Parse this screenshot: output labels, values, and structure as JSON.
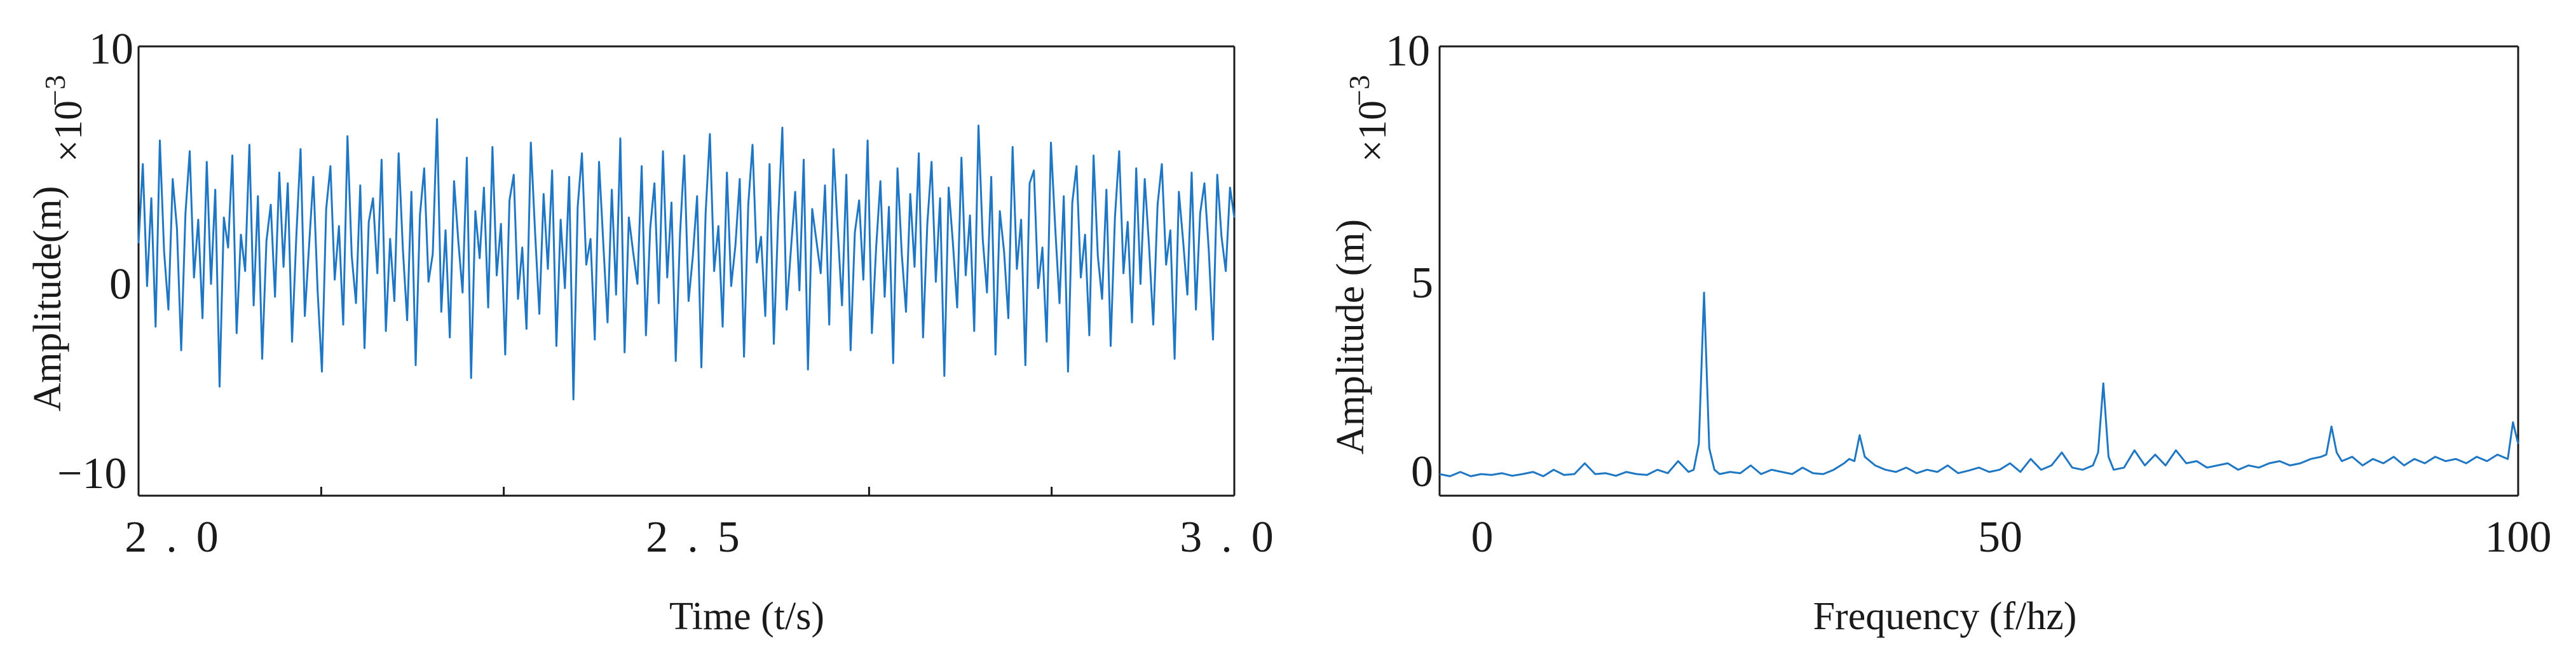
{
  "chart_data": [
    {
      "type": "line",
      "title": "",
      "xlabel": "Time (t/s)",
      "ylabel": "Amplitude(m)",
      "y_multiplier": "×10",
      "y_multiplier_exponent": "−3",
      "xlim": [
        2.0,
        3.0
      ],
      "ylim": [
        -11,
        10
      ],
      "x_ticks": [
        2.0,
        2.5,
        3.0
      ],
      "x_tick_labels": [
        "2.0",
        "2.5",
        "3.0"
      ],
      "y_ticks": [
        10,
        0,
        -10
      ],
      "y_tick_labels": [
        "10",
        "0",
        "−10"
      ],
      "x_minor_ticks": [
        2.1667,
        2.3333,
        2.6667,
        2.8333
      ],
      "grid": false,
      "line_color": "#1f77c4",
      "series": [
        {
          "x_start": 2.0,
          "x_end": 3.0,
          "values": [
            0.8,
            4.5,
            -1.2,
            2.9,
            -3.1,
            5.6,
            0.4,
            -2.3,
            3.8,
            1.5,
            -4.2,
            2.2,
            5.1,
            -0.8,
            1.9,
            -2.7,
            4.6,
            -1.1,
            3.3,
            -5.9,
            2.0,
            0.6,
            4.9,
            -3.4,
            1.2,
            -0.5,
            5.4,
            -2.1,
            3.0,
            -4.6,
            0.9,
            2.6,
            -1.7,
            4.1,
            -0.3,
            3.6,
            -3.8,
            1.1,
            5.2,
            -2.6,
            0.7,
            3.9,
            -1.4,
            -5.2,
            2.4,
            4.4,
            -0.9,
            1.6,
            -3.0,
            5.8,
            0.2,
            -2.0,
            3.5,
            -4.1,
            1.8,
            2.9,
            -0.6,
            4.7,
            -3.3,
            1.0,
            -1.9,
            5.0,
            0.5,
            -2.8,
            3.2,
            -4.9,
            2.1,
            4.3,
            -1.0,
            0.3,
            6.6,
            -2.4,
            1.4,
            -3.6,
            3.7,
            0.9,
            -1.5,
            4.8,
            -5.5,
            2.3,
            0.1,
            3.4,
            -2.2,
            5.3,
            -0.7,
            1.7,
            -4.4,
            2.8,
            4.0,
            -1.8,
            0.6,
            -3.2,
            5.5,
            1.3,
            -2.5,
            3.1,
            -0.4,
            4.2,
            -4.0,
            1.9,
            -1.3,
            3.9,
            -6.5,
            2.5,
            5.0,
            -0.2,
            1.0,
            -3.7,
            4.6,
            0.8,
            -2.9,
            3.3,
            -1.6,
            5.7,
            -4.3,
            2.0,
            0.4,
            -1.1,
            4.4,
            -3.5,
            1.5,
            3.6,
            -2.0,
            5.1,
            -0.8,
            2.7,
            -4.7,
            1.2,
            4.9,
            -1.9,
            0.2,
            3.0,
            -5.0,
            2.2,
            5.9,
            -0.5,
            1.6,
            -3.1,
            4.1,
            -1.2,
            0.7,
            3.8,
            -4.5,
            2.6,
            5.4,
            -0.1,
            1.1,
            -2.6,
            4.5,
            -3.9,
            1.8,
            6.2,
            -2.3,
            0.5,
            3.2,
            -1.4,
            4.7,
            -5.1,
            2.4,
            0.9,
            -0.6,
            3.5,
            -3.0,
            5.2,
            1.4,
            -2.1,
            4.0,
            -4.2,
            1.3,
            2.8,
            -0.9,
            5.6,
            -3.4,
            0.6,
            3.7,
            -1.7,
            2.5,
            -4.8,
            4.3,
            0.3,
            -2.4,
            3.1,
            -0.3,
            5.0,
            -3.6,
            1.7,
            4.6,
            -1.0,
            2.9,
            -5.4,
            3.4,
            0.8,
            -2.2,
            4.8,
            -0.7,
            2.1,
            -3.3,
            6.3,
            1.0,
            -1.5,
            3.9,
            -4.4,
            2.3,
            0.4,
            -2.7,
            5.3,
            -0.4,
            1.9,
            -4.9,
            3.6,
            4.2,
            -1.3,
            0.6,
            -3.8,
            5.5,
            1.5,
            -2.0,
            3.0,
            -5.2,
            2.7,
            4.4,
            -0.8,
            1.2,
            -3.5,
            4.9,
            0.2,
            -1.8,
            3.3,
            -4.0,
            2.0,
            5.1,
            -0.6,
            1.8,
            -2.9,
            4.3,
            -1.1,
            3.8,
            0.7,
            -3.0,
            2.6,
            4.5,
            -0.2,
            1.4,
            -4.6,
            3.2,
            0.9,
            -1.6,
            4.1,
            -2.3,
            2.2,
            3.6,
            0.5,
            -3.7,
            4.0,
            1.1,
            -0.5,
            3.4,
            2.0
          ]
        }
      ]
    },
    {
      "type": "line",
      "title": "",
      "xlabel": "Frequency (f/hz)",
      "ylabel": "Amplitude (m)",
      "y_multiplier": "×10",
      "y_multiplier_exponent": "−3",
      "xlim": [
        -4,
        100
      ],
      "ylim": [
        -0.4,
        10
      ],
      "x_ticks": [
        0,
        50,
        100
      ],
      "x_tick_labels": [
        "0",
        "50",
        "100"
      ],
      "y_ticks": [
        10,
        5,
        0
      ],
      "y_tick_labels": [
        "10",
        "5",
        "0"
      ],
      "grid": false,
      "line_color": "#1f77c4",
      "series": [
        {
          "x": [
            -4,
            -3,
            -2,
            -1,
            0,
            1,
            2,
            3,
            4,
            5,
            6,
            7,
            8,
            9,
            10,
            11,
            12,
            13,
            14,
            15,
            16,
            17,
            18,
            19,
            20,
            20.5,
            21,
            21.5,
            22,
            22.5,
            23,
            24,
            25,
            26,
            27,
            28,
            29,
            30,
            31,
            32,
            33,
            34,
            35,
            35.5,
            36,
            36.5,
            37,
            38,
            39,
            40,
            41,
            42,
            43,
            44,
            45,
            46,
            47,
            48,
            49,
            50,
            51,
            52,
            53,
            54,
            55,
            56,
            57,
            58,
            59,
            59.5,
            60,
            60.5,
            61,
            62,
            63,
            64,
            65,
            66,
            67,
            68,
            69,
            70,
            71,
            72,
            73,
            74,
            75,
            76,
            77,
            78,
            79,
            80,
            81,
            81.5,
            82,
            82.5,
            83,
            84,
            85,
            86,
            87,
            88,
            89,
            90,
            91,
            92,
            93,
            94,
            95,
            96,
            97,
            98,
            99,
            99.5,
            100
          ],
          "y": [
            0.1,
            0.05,
            0.15,
            0.05,
            0.1,
            0.08,
            0.12,
            0.06,
            0.1,
            0.15,
            0.05,
            0.2,
            0.08,
            0.1,
            0.35,
            0.1,
            0.12,
            0.06,
            0.15,
            0.1,
            0.08,
            0.2,
            0.12,
            0.4,
            0.15,
            0.2,
            0.8,
            4.3,
            0.7,
            0.2,
            0.1,
            0.15,
            0.12,
            0.3,
            0.1,
            0.2,
            0.15,
            0.1,
            0.25,
            0.12,
            0.1,
            0.2,
            0.35,
            0.45,
            0.4,
            1.0,
            0.5,
            0.3,
            0.2,
            0.15,
            0.25,
            0.12,
            0.2,
            0.15,
            0.3,
            0.12,
            0.18,
            0.25,
            0.15,
            0.2,
            0.35,
            0.15,
            0.45,
            0.2,
            0.3,
            0.6,
            0.25,
            0.2,
            0.3,
            0.6,
            2.2,
            0.5,
            0.2,
            0.25,
            0.65,
            0.3,
            0.55,
            0.3,
            0.65,
            0.35,
            0.4,
            0.25,
            0.3,
            0.35,
            0.2,
            0.3,
            0.25,
            0.35,
            0.4,
            0.3,
            0.35,
            0.45,
            0.5,
            0.55,
            1.2,
            0.6,
            0.4,
            0.5,
            0.3,
            0.45,
            0.35,
            0.5,
            0.3,
            0.45,
            0.35,
            0.5,
            0.4,
            0.45,
            0.35,
            0.5,
            0.4,
            0.55,
            0.45,
            1.3,
            0.8
          ]
        }
      ]
    }
  ]
}
